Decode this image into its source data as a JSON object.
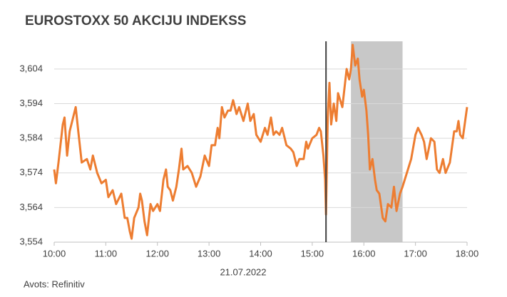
{
  "chart_data": {
    "type": "line",
    "title": "EUROSTOXX 50 AKCIJU INDEKSS",
    "xlabel": "21.07.2022",
    "source": "Avots: Refinitiv",
    "xlim": [
      600,
      1080
    ],
    "xticks": [
      {
        "value": 600,
        "label": "10:00"
      },
      {
        "value": 660,
        "label": "11:00"
      },
      {
        "value": 720,
        "label": "12:00"
      },
      {
        "value": 780,
        "label": "13:00"
      },
      {
        "value": 840,
        "label": "14:00"
      },
      {
        "value": 900,
        "label": "15:00"
      },
      {
        "value": 960,
        "label": "16:00"
      },
      {
        "value": 1020,
        "label": "17:00"
      },
      {
        "value": 1080,
        "label": "18:00"
      }
    ],
    "ylim": [
      3554,
      3612
    ],
    "yticks": [
      {
        "value": 3554,
        "label": "3,554"
      },
      {
        "value": 3564,
        "label": "3,564"
      },
      {
        "value": 3574,
        "label": "3,574"
      },
      {
        "value": 3584,
        "label": "3,584"
      },
      {
        "value": 3594,
        "label": "3,594"
      },
      {
        "value": 3604,
        "label": "3,604"
      }
    ],
    "grid": true,
    "vline": 916,
    "shaded_range": [
      945,
      1005
    ],
    "x": [
      600,
      602,
      605,
      610,
      612,
      615,
      618,
      622,
      625,
      628,
      632,
      638,
      642,
      645,
      650,
      655,
      660,
      663,
      668,
      672,
      678,
      682,
      685,
      688,
      690,
      693,
      698,
      700,
      702,
      705,
      708,
      712,
      715,
      720,
      723,
      727,
      730,
      732,
      735,
      738,
      742,
      745,
      748,
      750,
      755,
      760,
      765,
      770,
      775,
      780,
      783,
      787,
      790,
      792,
      795,
      798,
      802,
      805,
      808,
      812,
      815,
      820,
      825,
      828,
      832,
      835,
      840,
      845,
      848,
      852,
      855,
      858,
      862,
      865,
      870,
      875,
      878,
      882,
      885,
      890,
      893,
      895,
      900,
      905,
      908,
      910,
      913,
      915,
      916,
      918,
      920,
      922,
      925,
      928,
      930,
      935,
      940,
      943,
      945,
      947,
      950,
      953,
      955,
      958,
      960,
      963,
      965,
      967,
      970,
      973,
      975,
      978,
      982,
      985,
      988,
      992,
      995,
      998,
      1002,
      1005,
      1010,
      1015,
      1020,
      1023,
      1027,
      1030,
      1033,
      1038,
      1042,
      1045,
      1048,
      1052,
      1055,
      1060,
      1065,
      1068,
      1070,
      1072,
      1075,
      1080
    ],
    "series": [
      {
        "color": "#ed7d31",
        "values": [
          3575,
          3571,
          3577,
          3588,
          3590,
          3579,
          3586,
          3590,
          3593,
          3586,
          3577,
          3578,
          3575,
          3579,
          3574,
          3571,
          3572,
          3567,
          3569,
          3565,
          3568,
          3561,
          3561,
          3557,
          3555,
          3561,
          3564,
          3568,
          3566,
          3560,
          3556,
          3565,
          3563,
          3565,
          3563,
          3572,
          3575,
          3570,
          3569,
          3566,
          3570,
          3575,
          3581,
          3575,
          3576,
          3574,
          3570,
          3573,
          3579,
          3576,
          3582,
          3582,
          3587,
          3584,
          3593,
          3590,
          3592,
          3592,
          3595,
          3591,
          3593,
          3589,
          3594,
          3589,
          3591,
          3585,
          3583,
          3587,
          3585,
          3590,
          3585,
          3586,
          3585,
          3587,
          3582,
          3581,
          3580,
          3576,
          3578,
          3578,
          3583,
          3581,
          3584,
          3585,
          3587,
          3586,
          3579,
          3572,
          3562,
          3590,
          3600,
          3588,
          3594,
          3589,
          3597,
          3593,
          3604,
          3601,
          3604,
          3611,
          3605,
          3607,
          3601,
          3596,
          3598,
          3592,
          3585,
          3575,
          3578,
          3572,
          3569,
          3568,
          3561,
          3560,
          3565,
          3564,
          3570,
          3563,
          3568,
          3570,
          3574,
          3578,
          3585,
          3587,
          3585,
          3583,
          3578,
          3584,
          3583,
          3575,
          3574,
          3578,
          3574,
          3577,
          3586,
          3586,
          3589,
          3585,
          3584,
          3593
        ]
      }
    ]
  }
}
